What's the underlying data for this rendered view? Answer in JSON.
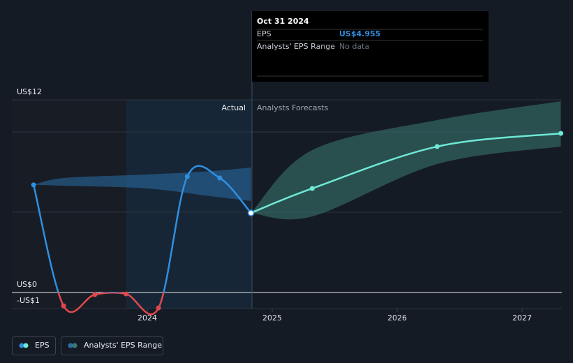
{
  "chart_data": {
    "type": "line",
    "annotations": {
      "actual": "Actual",
      "forecast": "Analysts Forecasts"
    },
    "xlim": [
      2022.916,
      2027.318
    ],
    "xticks": [
      2024,
      2025,
      2026,
      2027
    ],
    "ylim": [
      -1,
      12
    ],
    "yticks": [
      {
        "value": 12,
        "label": "US$12"
      },
      {
        "value": 10,
        "label": null
      },
      {
        "value": 5,
        "label": null
      },
      {
        "value": 0,
        "label": "US$0"
      },
      {
        "value": -1,
        "label": "-US$1"
      }
    ],
    "grid": true,
    "series": [
      {
        "name": "EPS",
        "color": "#2f8fe0",
        "negative_color": "#e0484f",
        "x": [
          2023.09,
          2023.33,
          2023.58,
          2023.83,
          2024.09,
          2024.32,
          2024.58,
          2024.83
        ],
        "values": [
          6.7,
          -0.83,
          -0.13,
          -0.09,
          -0.96,
          7.22,
          7.13,
          4.955
        ]
      }
    ],
    "forecast": {
      "color": "#6fe8d6",
      "x": [
        2024.83,
        2025.32,
        2026.32,
        2027.31
      ],
      "values": [
        4.955,
        6.48,
        9.09,
        9.91
      ]
    },
    "range_name": "Analysts' EPS Range",
    "ranges": [
      {
        "color": "#2a6ea8",
        "x": [
          2023.09,
          2023.33,
          2024.0,
          2024.5,
          2024.83
        ],
        "high": [
          6.7,
          7.13,
          7.35,
          7.55,
          7.78
        ],
        "low": [
          6.7,
          6.65,
          6.48,
          6.0,
          5.7
        ]
      },
      {
        "color": "#3a7a72",
        "x": [
          2024.83,
          2025.32,
          2026.32,
          2027.31
        ],
        "high": [
          4.955,
          8.87,
          10.74,
          11.91
        ],
        "low": [
          4.955,
          4.74,
          8.0,
          9.09
        ]
      }
    ],
    "tooltip": {
      "date": "Oct 31 2024",
      "rows": [
        {
          "label": "EPS",
          "value": "US$4.955"
        },
        {
          "label": "Analysts' EPS Range",
          "value": "No data"
        }
      ]
    }
  }
}
